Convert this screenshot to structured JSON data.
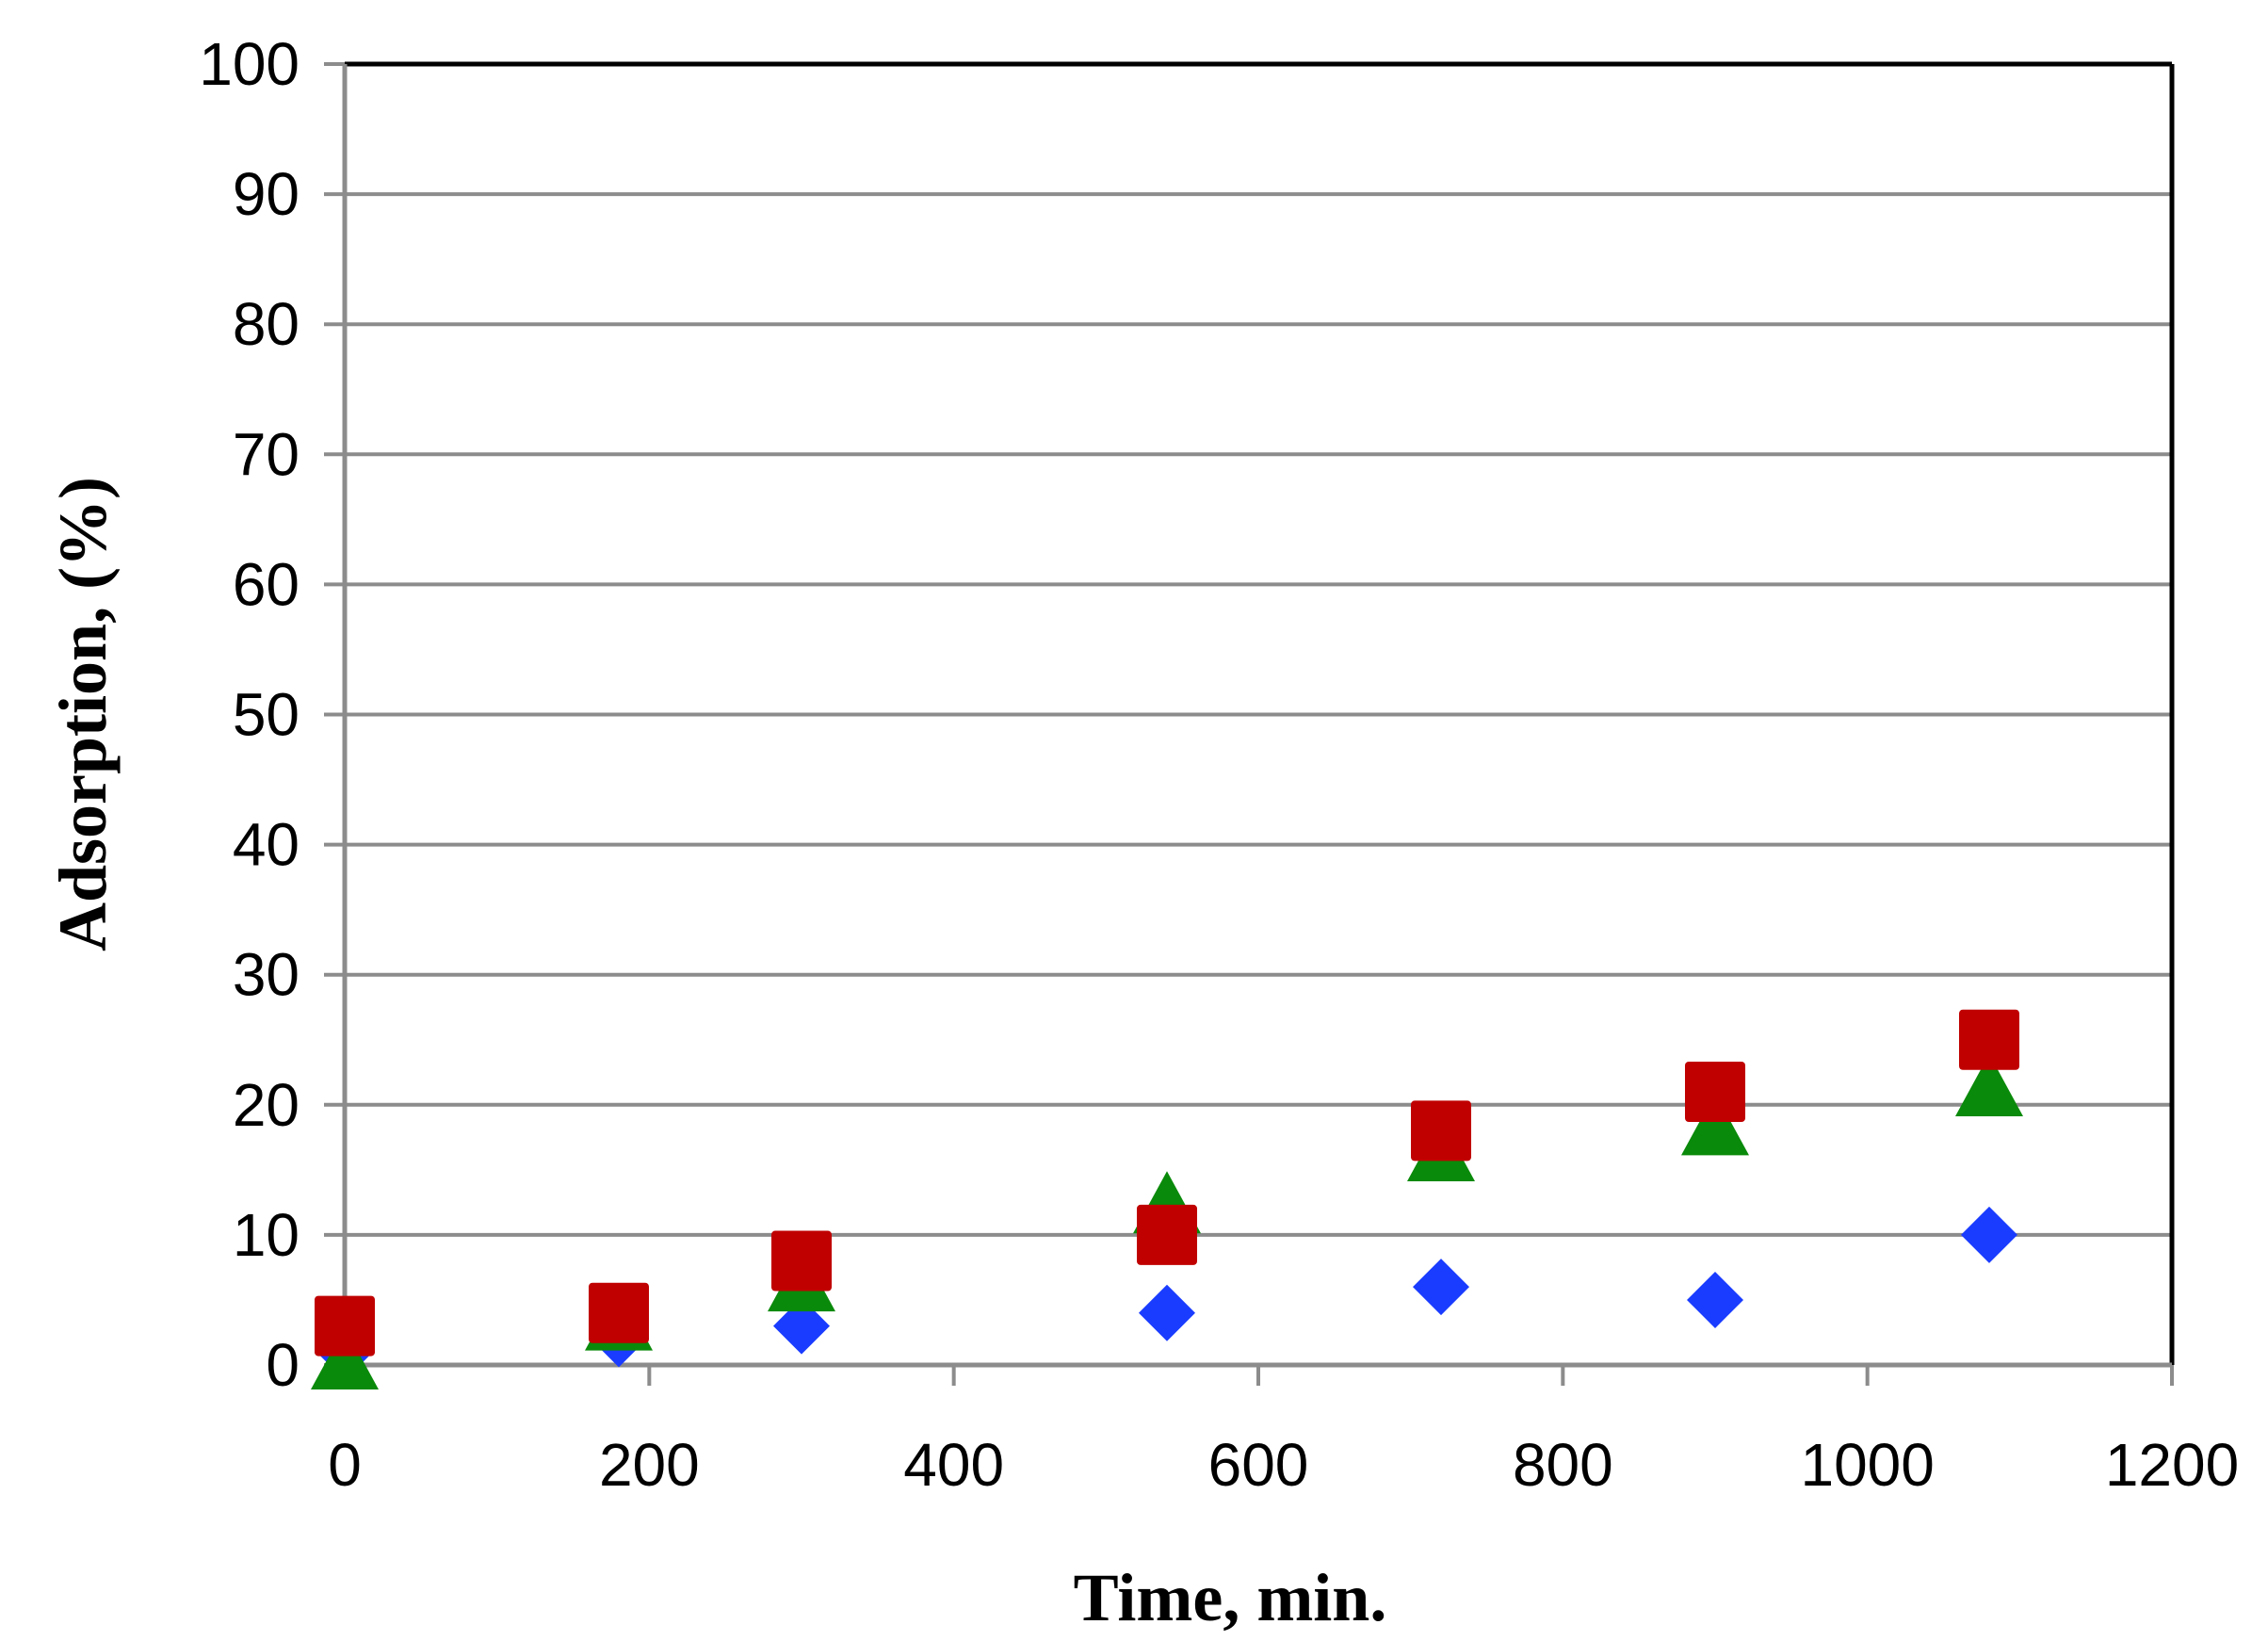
{
  "chart_data": {
    "type": "scatter",
    "title": "",
    "xlabel": "Time, min.",
    "ylabel": "Adsorption, (%)",
    "xlim": [
      0,
      1200
    ],
    "ylim": [
      0,
      100
    ],
    "x_ticks": [
      "0",
      "200",
      "400",
      "600",
      "800",
      "1000",
      "1200"
    ],
    "y_ticks": [
      "0",
      "10",
      "20",
      "30",
      "40",
      "50",
      "60",
      "70",
      "80",
      "90",
      "100"
    ],
    "grid": "horizontal",
    "legend": "none",
    "series": [
      {
        "marker": "diamond",
        "color": "#1a3cff",
        "x": [
          0,
          180,
          300,
          540,
          720,
          900,
          1080
        ],
        "y": [
          1,
          2,
          3,
          4,
          6,
          5,
          10
        ]
      },
      {
        "marker": "triangle",
        "color": "#0a8a0a",
        "x": [
          0,
          180,
          300,
          540,
          720,
          900,
          1080
        ],
        "y": [
          0,
          3,
          6,
          12,
          16,
          18,
          21
        ]
      },
      {
        "marker": "square",
        "color": "#c00000",
        "x": [
          0,
          180,
          300,
          540,
          720,
          900,
          1080
        ],
        "y": [
          3,
          4,
          8,
          10,
          18,
          21,
          25
        ]
      }
    ]
  }
}
